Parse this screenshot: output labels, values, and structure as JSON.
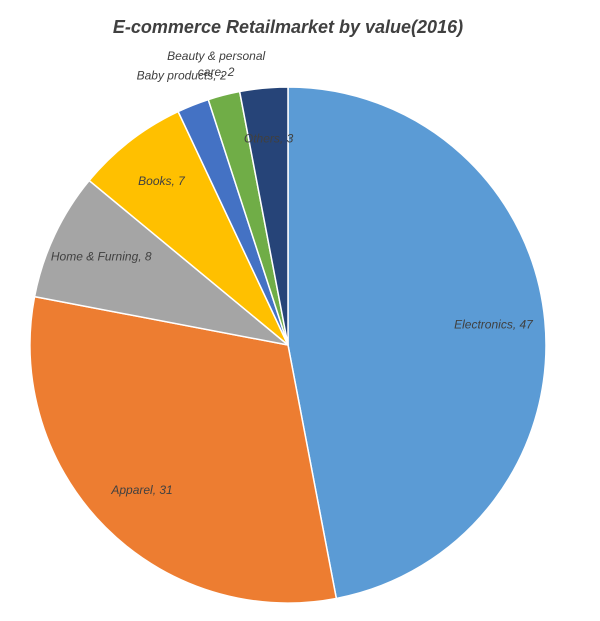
{
  "chart_data": {
    "type": "pie",
    "title": "E-commerce Retailmarket by value(2016)",
    "categories": [
      "Electronics",
      "Apparel",
      "Home & Furning",
      "Books",
      "Baby products",
      "Beauty & personal care",
      "Others"
    ],
    "values": [
      47,
      31,
      8,
      7,
      2,
      2,
      3
    ],
    "value_labels": [
      "Electronics, 47",
      "Apparel, 31",
      "Home & Furning, 8",
      "Books, 7",
      "Baby products, 2",
      "Beauty & personal care, 2",
      "Others, 3"
    ],
    "colors": [
      "#5b9bd5",
      "#ed7d31",
      "#a5a5a5",
      "#ffc000",
      "#4472c4",
      "#70ad47",
      "#264478"
    ]
  }
}
